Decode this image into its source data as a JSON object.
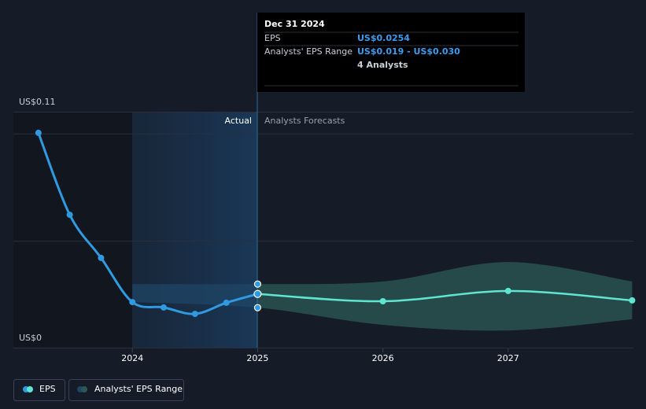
{
  "chart_data": {
    "type": "line",
    "tooltip": {
      "date": "Dec 31 2024",
      "eps_label": "EPS",
      "eps_value": "US$0.0254",
      "range_label": "Analysts' EPS Range",
      "range_value": "US$0.019 - US$0.030",
      "analysts": "4 Analysts"
    },
    "region_labels": {
      "actual": "Actual",
      "forecast": "Analysts Forecasts"
    },
    "xlim": [
      2023.05,
      2028
    ],
    "xticks": [
      2024,
      2025,
      2026,
      2027
    ],
    "ylim": [
      0,
      0.11
    ],
    "yticks": [
      {
        "value": 0,
        "label": "US$0"
      },
      {
        "value": 0.11,
        "label": "US$0.11"
      }
    ],
    "grid_values": [
      0.05,
      0.1
    ],
    "grid": true,
    "series": [
      {
        "name": "EPS",
        "color": "#2f9ae0",
        "x": [
          2023.25,
          2023.5,
          2023.75,
          2024,
          2024.25,
          2024.5,
          2024.75,
          2025
        ],
        "values": [
          0.1005,
          0.0623,
          0.0422,
          0.0216,
          0.0191,
          0.0161,
          0.0213,
          0.0254
        ]
      }
    ],
    "forecast": {
      "color": "#5ee6d0",
      "x": [
        2025,
        2026,
        2027,
        2027.99
      ],
      "values": [
        0.0254,
        0.022,
        0.0268,
        0.0224
      ]
    },
    "range": {
      "name": "Analysts' EPS Range",
      "color": "#2c5855",
      "past_color": "#1f4566",
      "x": [
        2024,
        2025,
        2026,
        2027,
        2027.99
      ],
      "low": [
        0.0216,
        0.019,
        0.011,
        0.0084,
        0.0136
      ],
      "high": [
        0.03,
        0.03,
        0.0312,
        0.0403,
        0.0312
      ]
    }
  }
}
